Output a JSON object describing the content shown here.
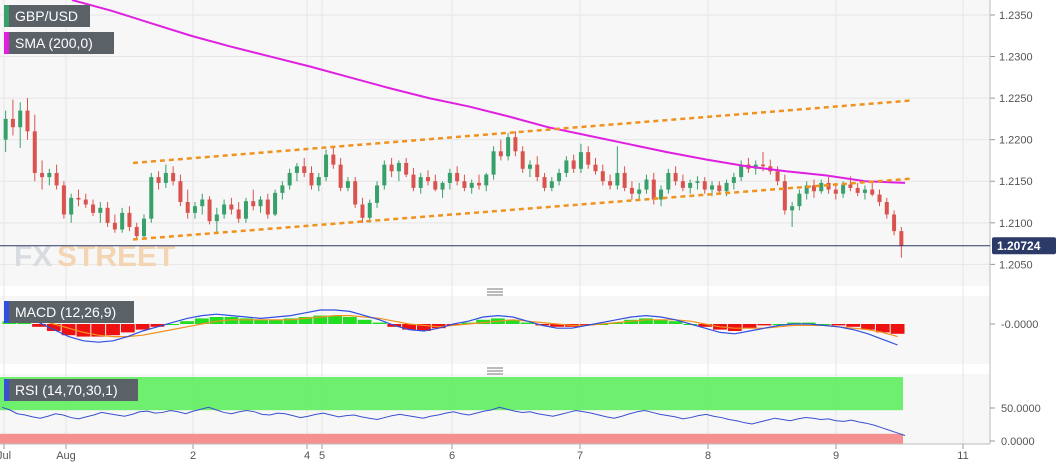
{
  "colors": {
    "up": "#37a06b",
    "down": "#d9534f",
    "sma": "#e020e0",
    "channel": "#f0921e",
    "macd_line": "#2f4fe0",
    "signal_line": "#f0921e",
    "hist_pos": "#22dd22",
    "hist_neg": "#ee1111",
    "rsi_line": "#3a50d0",
    "rsi_overbought_band": "#66ee66",
    "rsi_oversold_band": "#f48a8a",
    "price_line": "#2b3a67",
    "label_bg": "#5a6268"
  },
  "header": {
    "symbol": "GBP/USD",
    "sma_label": "SMA (200,0)",
    "macd_label": "MACD (12,26,9)",
    "rsi_label": "RSI (14,70,30,1)"
  },
  "watermark": {
    "text_fx": "FX",
    "text_street": "STREET"
  },
  "icons": {
    "pane_separator": "drag-handle-icon"
  },
  "chart_data": {
    "type": "candlestick",
    "title": "GBP/USD",
    "x_ticks": [
      "Jul",
      "Aug",
      "2",
      "4",
      "5",
      "6",
      "7",
      "8",
      "9",
      "11"
    ],
    "price_axis": {
      "ticks": [
        "1.2350",
        "1.2300",
        "1.2250",
        "1.2200",
        "1.2150",
        "1.2100",
        "1.2050"
      ],
      "range": [
        1.2024,
        1.2368
      ]
    },
    "last_price": "1.20724",
    "sma_200": [
      1.2368,
      1.2355,
      1.234,
      1.2325,
      1.2312,
      1.23,
      1.2288,
      1.2275,
      1.2262,
      1.225,
      1.224,
      1.2228,
      1.2215,
      1.2205,
      1.2195,
      1.2185,
      1.2176,
      1.2168,
      1.2162,
      1.2157,
      1.215,
      1.2148
    ],
    "channel_upper": {
      "from": [
        1.2172,
        0
      ],
      "to": [
        1.2247,
        1
      ]
    },
    "channel_lower": {
      "from": [
        1.208,
        0
      ],
      "to": [
        1.2153,
        1
      ]
    },
    "candles": [
      [
        1.22,
        1.2235,
        1.2185,
        1.2225
      ],
      [
        1.2225,
        1.2248,
        1.2205,
        1.2215
      ],
      [
        1.2215,
        1.2245,
        1.219,
        1.2235
      ],
      [
        1.2235,
        1.225,
        1.22,
        1.221
      ],
      [
        1.221,
        1.223,
        1.215,
        1.216
      ],
      [
        1.216,
        1.2175,
        1.214,
        1.2155
      ],
      [
        1.2155,
        1.2165,
        1.2145,
        1.216
      ],
      [
        1.216,
        1.217,
        1.214,
        1.2145
      ],
      [
        1.2145,
        1.215,
        1.2105,
        1.211
      ],
      [
        1.211,
        1.2135,
        1.21,
        1.213
      ],
      [
        1.213,
        1.214,
        1.212,
        1.2128
      ],
      [
        1.2128,
        1.2135,
        1.2118,
        1.2122
      ],
      [
        1.2122,
        1.2128,
        1.2108,
        1.2112
      ],
      [
        1.2112,
        1.2125,
        1.21,
        1.2118
      ],
      [
        1.2118,
        1.2125,
        1.2095,
        1.21
      ],
      [
        1.21,
        1.211,
        1.2088,
        1.2092
      ],
      [
        1.2092,
        1.2118,
        1.2088,
        1.2112
      ],
      [
        1.2112,
        1.212,
        1.209,
        1.2095
      ],
      [
        1.2095,
        1.21,
        1.208,
        1.2084
      ],
      [
        1.2084,
        1.211,
        1.208,
        1.2105
      ],
      [
        1.2105,
        1.216,
        1.21,
        1.2155
      ],
      [
        1.2155,
        1.2162,
        1.214,
        1.2148
      ],
      [
        1.2148,
        1.217,
        1.2142,
        1.216
      ],
      [
        1.216,
        1.2168,
        1.2145,
        1.215
      ],
      [
        1.215,
        1.2158,
        1.212,
        1.2125
      ],
      [
        1.2125,
        1.214,
        1.2105,
        1.2112
      ],
      [
        1.2112,
        1.2125,
        1.2105,
        1.212
      ],
      [
        1.212,
        1.2135,
        1.211,
        1.2128
      ],
      [
        1.2128,
        1.2132,
        1.2098,
        1.2102
      ],
      [
        1.2102,
        1.2118,
        1.2088,
        1.211
      ],
      [
        1.211,
        1.2128,
        1.2105,
        1.2122
      ],
      [
        1.2122,
        1.213,
        1.211,
        1.2116
      ],
      [
        1.2116,
        1.2125,
        1.21,
        1.2105
      ],
      [
        1.2105,
        1.213,
        1.21,
        1.2126
      ],
      [
        1.2126,
        1.214,
        1.2115,
        1.212
      ],
      [
        1.212,
        1.2132,
        1.2112,
        1.2128
      ],
      [
        1.2128,
        1.2135,
        1.2105,
        1.211
      ],
      [
        1.211,
        1.214,
        1.2108,
        1.2136
      ],
      [
        1.2136,
        1.215,
        1.2128,
        1.2145
      ],
      [
        1.2145,
        1.2165,
        1.214,
        1.216
      ],
      [
        1.216,
        1.2172,
        1.215,
        1.2168
      ],
      [
        1.2168,
        1.2178,
        1.2155,
        1.216
      ],
      [
        1.216,
        1.2168,
        1.214,
        1.2145
      ],
      [
        1.2145,
        1.216,
        1.2138,
        1.2155
      ],
      [
        1.2155,
        1.2188,
        1.215,
        1.2182
      ],
      [
        1.2182,
        1.219,
        1.2165,
        1.217
      ],
      [
        1.217,
        1.2178,
        1.2138,
        1.2142
      ],
      [
        1.2142,
        1.2155,
        1.2138,
        1.215
      ],
      [
        1.215,
        1.2155,
        1.2118,
        1.2122
      ],
      [
        1.2122,
        1.213,
        1.21,
        1.2106
      ],
      [
        1.2106,
        1.2128,
        1.21,
        1.2124
      ],
      [
        1.2124,
        1.215,
        1.2118,
        1.2145
      ],
      [
        1.2145,
        1.2175,
        1.214,
        1.217
      ],
      [
        1.217,
        1.2178,
        1.2155,
        1.2162
      ],
      [
        1.2162,
        1.2175,
        1.215,
        1.2172
      ],
      [
        1.2172,
        1.2178,
        1.2155,
        1.2158
      ],
      [
        1.2158,
        1.2166,
        1.2138,
        1.2142
      ],
      [
        1.2142,
        1.216,
        1.2135,
        1.2155
      ],
      [
        1.2155,
        1.2163,
        1.2145,
        1.215
      ],
      [
        1.215,
        1.2158,
        1.2138,
        1.214
      ],
      [
        1.214,
        1.215,
        1.213,
        1.2148
      ],
      [
        1.2148,
        1.2165,
        1.214,
        1.216
      ],
      [
        1.216,
        1.2168,
        1.2145,
        1.215
      ],
      [
        1.215,
        1.2158,
        1.2138,
        1.2142
      ],
      [
        1.2142,
        1.2152,
        1.2135,
        1.2148
      ],
      [
        1.2148,
        1.2158,
        1.214,
        1.2145
      ],
      [
        1.2145,
        1.216,
        1.2138,
        1.2158
      ],
      [
        1.2158,
        1.2192,
        1.2152,
        1.2186
      ],
      [
        1.2186,
        1.22,
        1.2175,
        1.218
      ],
      [
        1.218,
        1.2208,
        1.2175,
        1.2203
      ],
      [
        1.2203,
        1.221,
        1.218,
        1.2186
      ],
      [
        1.2186,
        1.2192,
        1.216,
        1.2165
      ],
      [
        1.2165,
        1.2175,
        1.2155,
        1.217
      ],
      [
        1.217,
        1.218,
        1.215,
        1.2155
      ],
      [
        1.2155,
        1.216,
        1.2138,
        1.2142
      ],
      [
        1.2142,
        1.2155,
        1.2138,
        1.215
      ],
      [
        1.215,
        1.2165,
        1.2145,
        1.216
      ],
      [
        1.216,
        1.218,
        1.2155,
        1.2175
      ],
      [
        1.2175,
        1.2182,
        1.216,
        1.2165
      ],
      [
        1.2165,
        1.2195,
        1.216,
        1.2185
      ],
      [
        1.2185,
        1.2192,
        1.2165,
        1.217
      ],
      [
        1.217,
        1.2178,
        1.2158,
        1.2162
      ],
      [
        1.2162,
        1.217,
        1.2145,
        1.215
      ],
      [
        1.215,
        1.2158,
        1.214,
        1.2145
      ],
      [
        1.2145,
        1.2192,
        1.214,
        1.216
      ],
      [
        1.216,
        1.2168,
        1.2138,
        1.2142
      ],
      [
        1.2142,
        1.215,
        1.2128,
        1.2135
      ],
      [
        1.2135,
        1.2148,
        1.2128,
        1.214
      ],
      [
        1.214,
        1.2158,
        1.2135,
        1.2152
      ],
      [
        1.2152,
        1.216,
        1.2122,
        1.2128
      ],
      [
        1.2128,
        1.2145,
        1.212,
        1.214
      ],
      [
        1.214,
        1.2165,
        1.2135,
        1.216
      ],
      [
        1.216,
        1.2168,
        1.2145,
        1.215
      ],
      [
        1.215,
        1.2158,
        1.2138,
        1.2142
      ],
      [
        1.2142,
        1.2152,
        1.2135,
        1.2148
      ],
      [
        1.2148,
        1.2156,
        1.214,
        1.215
      ],
      [
        1.215,
        1.2155,
        1.2135,
        1.214
      ],
      [
        1.214,
        1.215,
        1.2132,
        1.2145
      ],
      [
        1.2145,
        1.215,
        1.2135,
        1.2138
      ],
      [
        1.2138,
        1.2152,
        1.2132,
        1.2148
      ],
      [
        1.2148,
        1.216,
        1.214,
        1.2155
      ],
      [
        1.2155,
        1.2175,
        1.215,
        1.217
      ],
      [
        1.217,
        1.2178,
        1.216,
        1.2165
      ],
      [
        1.2165,
        1.2175,
        1.2158,
        1.217
      ],
      [
        1.217,
        1.2185,
        1.2162,
        1.2168
      ],
      [
        1.2168,
        1.2176,
        1.2158,
        1.2162
      ],
      [
        1.2162,
        1.2168,
        1.2145,
        1.215
      ],
      [
        1.215,
        1.2158,
        1.211,
        1.2115
      ],
      [
        1.2115,
        1.2125,
        1.2095,
        1.212
      ],
      [
        1.212,
        1.214,
        1.2115,
        1.2135
      ],
      [
        1.2135,
        1.215,
        1.2128,
        1.2145
      ],
      [
        1.2145,
        1.2152,
        1.213,
        1.2138
      ],
      [
        1.2138,
        1.2152,
        1.2135,
        1.2148
      ],
      [
        1.2148,
        1.2155,
        1.2135,
        1.214
      ],
      [
        1.214,
        1.2148,
        1.2128,
        1.2135
      ],
      [
        1.2135,
        1.215,
        1.213,
        1.2146
      ],
      [
        1.2146,
        1.2156,
        1.2138,
        1.2142
      ],
      [
        1.2142,
        1.2148,
        1.2132,
        1.2136
      ],
      [
        1.2136,
        1.2145,
        1.2128,
        1.214
      ],
      [
        1.214,
        1.2148,
        1.2132,
        1.2134
      ],
      [
        1.2134,
        1.214,
        1.212,
        1.2125
      ],
      [
        1.2125,
        1.213,
        1.2105,
        1.211
      ],
      [
        1.211,
        1.2115,
        1.2085,
        1.209
      ],
      [
        1.209,
        1.2095,
        1.2058,
        1.2072
      ]
    ],
    "macd": {
      "axis_tick": "-0.0000",
      "hist": [
        0.2,
        0.1,
        -0.2,
        -0.5,
        -0.8,
        -0.9,
        -0.9,
        -0.8,
        -0.6,
        -0.4,
        -0.2,
        0.0,
        0.2,
        0.4,
        0.5,
        0.5,
        0.4,
        0.3,
        0.3,
        0.4,
        0.5,
        0.6,
        0.6,
        0.5,
        0.3,
        0.1,
        -0.2,
        -0.4,
        -0.5,
        -0.3,
        -0.1,
        0.1,
        0.3,
        0.4,
        0.3,
        0.1,
        -0.1,
        -0.2,
        -0.2,
        -0.1,
        0.0,
        0.1,
        0.3,
        0.4,
        0.3,
        0.2,
        0.0,
        -0.2,
        -0.4,
        -0.5,
        -0.3,
        -0.1,
        0.0,
        0.1,
        0.1,
        0.0,
        -0.1,
        -0.2,
        -0.4,
        -0.6,
        -0.7
      ],
      "macd": [
        0.9,
        0.6,
        0.1,
        -0.4,
        -0.9,
        -1.2,
        -1.3,
        -1.2,
        -0.9,
        -0.5,
        -0.2,
        0.1,
        0.4,
        0.6,
        0.7,
        0.6,
        0.5,
        0.4,
        0.5,
        0.6,
        0.8,
        1.0,
        1.0,
        0.9,
        0.6,
        0.3,
        -0.1,
        -0.4,
        -0.5,
        -0.3,
        0.0,
        0.2,
        0.5,
        0.6,
        0.5,
        0.2,
        -0.1,
        -0.3,
        -0.3,
        -0.1,
        0.1,
        0.3,
        0.5,
        0.6,
        0.5,
        0.3,
        0.0,
        -0.3,
        -0.6,
        -0.7,
        -0.5,
        -0.3,
        -0.1,
        0.0,
        0.0,
        -0.1,
        -0.2,
        -0.4,
        -0.7,
        -1.1,
        -1.5
      ],
      "signal": [
        0.6,
        0.5,
        0.3,
        0.0,
        -0.3,
        -0.6,
        -0.8,
        -0.9,
        -0.9,
        -0.8,
        -0.6,
        -0.4,
        -0.2,
        0.0,
        0.2,
        0.3,
        0.3,
        0.3,
        0.3,
        0.3,
        0.4,
        0.5,
        0.6,
        0.6,
        0.5,
        0.4,
        0.2,
        0.0,
        -0.1,
        -0.2,
        -0.1,
        0.0,
        0.1,
        0.2,
        0.3,
        0.2,
        0.1,
        0.0,
        -0.1,
        -0.1,
        0.0,
        0.1,
        0.2,
        0.3,
        0.3,
        0.3,
        0.2,
        0.0,
        -0.2,
        -0.3,
        -0.3,
        -0.3,
        -0.2,
        -0.1,
        -0.1,
        -0.1,
        -0.2,
        -0.3,
        -0.4,
        -0.6,
        -0.9
      ]
    },
    "rsi": {
      "axis_ticks": [
        "50.0000",
        "0.0000"
      ],
      "overbought": 70,
      "oversold": 30,
      "values": [
        62,
        58,
        52,
        50,
        47,
        45,
        48,
        52,
        50,
        46,
        44,
        47,
        50,
        54,
        52,
        50,
        48,
        51,
        55,
        56,
        53,
        54,
        57,
        55,
        52,
        56,
        59,
        62,
        58,
        54,
        52,
        55,
        57,
        55,
        51,
        50,
        53,
        52,
        49,
        46,
        48,
        51,
        53,
        50,
        47,
        49,
        50,
        47,
        45,
        43,
        46,
        49,
        51,
        49,
        47,
        45,
        48,
        50,
        53,
        55,
        52,
        50,
        53,
        56,
        58,
        62,
        59,
        56,
        54,
        55,
        52,
        50,
        48,
        51,
        54,
        57,
        55,
        53,
        50,
        47,
        45,
        48,
        52,
        55,
        57,
        54,
        51,
        49,
        47,
        44,
        46,
        49,
        51,
        48,
        46,
        43,
        41,
        38,
        36,
        39,
        42,
        45,
        43,
        41,
        44,
        46,
        45,
        43,
        44,
        41,
        40,
        42,
        39,
        37,
        34,
        30,
        26,
        22,
        18
      ]
    }
  }
}
